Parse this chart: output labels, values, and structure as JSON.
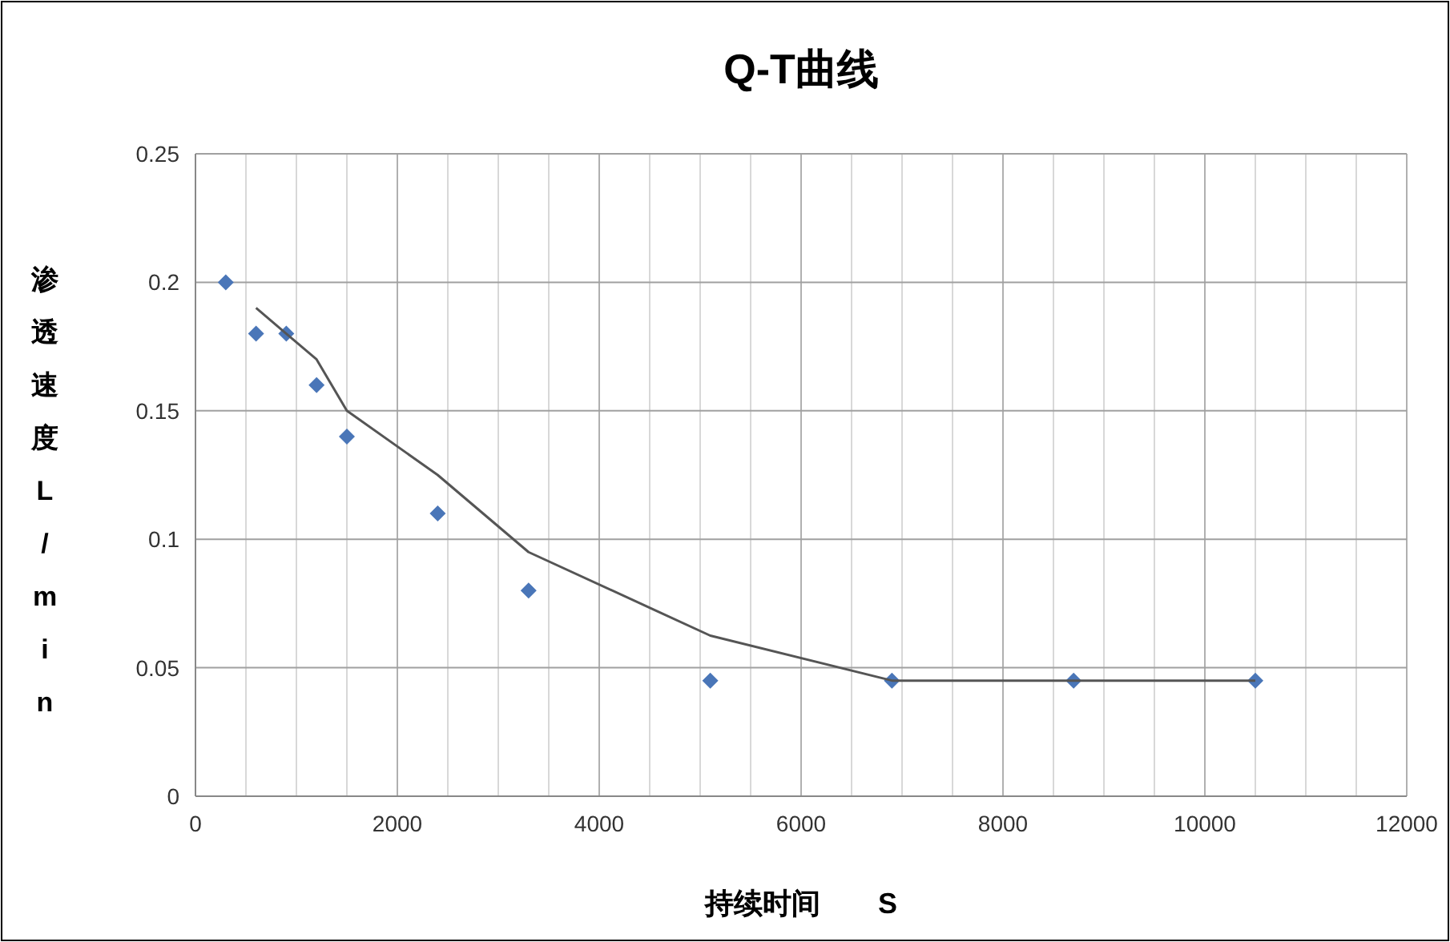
{
  "chart_data": {
    "type": "scatter",
    "title": "Q-T曲线",
    "xlabel": "持续时间　　S",
    "ylabel": "渗透速度L/min",
    "series": [
      {
        "color": "#4a76b8",
        "marker": "diamond",
        "x": [
          300,
          600,
          900,
          1200,
          1500,
          2400,
          3300,
          5100,
          6900,
          8700,
          10500
        ],
        "values": [
          0.2,
          0.18,
          0.18,
          0.16,
          0.14,
          0.11,
          0.08,
          0.045,
          0.045,
          0.045,
          0.045
        ]
      },
      {
        "type": "line",
        "color": "#555555",
        "marker": "none",
        "line_style": "solid",
        "x": [
          600,
          900,
          1200,
          1500,
          2400,
          3300,
          5100,
          6900,
          8700,
          10500
        ],
        "values": [
          0.19,
          0.18,
          0.17,
          0.15,
          0.125,
          0.095,
          0.0625,
          0.045,
          0.045,
          0.045
        ]
      }
    ],
    "xlim": [
      0,
      12000
    ],
    "xticks": [
      0,
      {
        "value": 500,
        "label": null
      },
      {
        "value": 1000,
        "label": null
      },
      {
        "value": 1500,
        "label": null
      },
      2000,
      {
        "value": 2500,
        "label": null
      },
      {
        "value": 3000,
        "label": null
      },
      {
        "value": 3500,
        "label": null
      },
      4000,
      {
        "value": 4500,
        "label": null
      },
      {
        "value": 5000,
        "label": null
      },
      {
        "value": 5500,
        "label": null
      },
      6000,
      {
        "value": 6500,
        "label": null
      },
      {
        "value": 7000,
        "label": null
      },
      {
        "value": 7500,
        "label": null
      },
      8000,
      {
        "value": 8500,
        "label": null
      },
      {
        "value": 9000,
        "label": null
      },
      {
        "value": 9500,
        "label": null
      },
      10000,
      {
        "value": 10500,
        "label": null
      },
      {
        "value": 11000,
        "label": null
      },
      {
        "value": 11500,
        "label": null
      },
      12000
    ],
    "ylim": [
      0,
      0.25
    ],
    "yticks": [
      0,
      0.05,
      0.1,
      0.15,
      0.2,
      0.25
    ],
    "grid": true
  }
}
